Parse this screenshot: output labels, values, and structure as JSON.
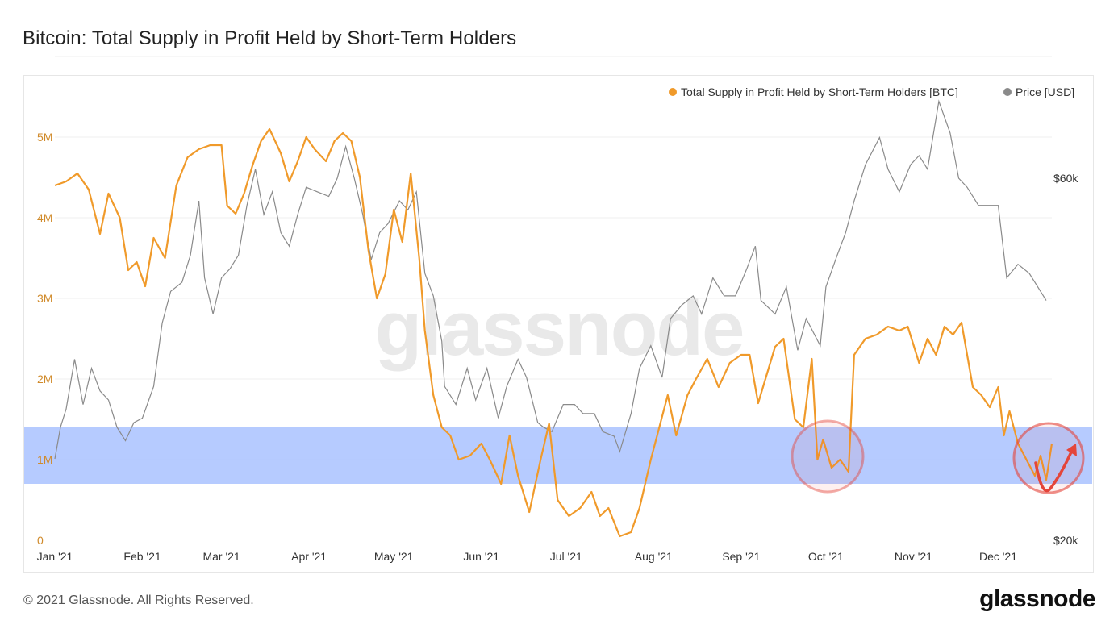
{
  "header": {
    "title": "Bitcoin: Total Supply in Profit Held by Short-Term Holders"
  },
  "footer": {
    "copyright": "© 2021 Glassnode. All Rights Reserved.",
    "logo": "glassnode"
  },
  "watermark": "glassnode",
  "colors": {
    "supply": "#f09a2a",
    "price": "#8a8a8a",
    "band": "#a9c2ff",
    "circle": "#e4453a"
  },
  "chart_data": {
    "type": "line",
    "legend_position": "top-right",
    "grid": true,
    "x_ticks": [
      "Jan '21",
      "Feb '21",
      "Mar '21",
      "Apr '21",
      "May '21",
      "Jun '21",
      "Jul '21",
      "Aug '21",
      "Sep '21",
      "Oct '21",
      "Nov '21",
      "Dec '21"
    ],
    "y_left": {
      "ticks": [
        "0",
        "1M",
        "2M",
        "3M",
        "4M",
        "5M"
      ],
      "range": [
        0,
        5500000
      ]
    },
    "y_right": {
      "ticks": [
        "$20k",
        "$60k"
      ],
      "range": [
        20000,
        69000
      ]
    },
    "highlight_band": [
      700000,
      1400000
    ],
    "series": [
      {
        "name": "Total Supply in Profit Held by Short-Term Holders [BTC]",
        "axis": "left",
        "points": [
          [
            "2021-01-01",
            4400000
          ],
          [
            "2021-01-05",
            4450000
          ],
          [
            "2021-01-09",
            4550000
          ],
          [
            "2021-01-13",
            4350000
          ],
          [
            "2021-01-17",
            3800000
          ],
          [
            "2021-01-20",
            4300000
          ],
          [
            "2021-01-24",
            4000000
          ],
          [
            "2021-01-27",
            3350000
          ],
          [
            "2021-01-30",
            3450000
          ],
          [
            "2021-02-02",
            3150000
          ],
          [
            "2021-02-05",
            3750000
          ],
          [
            "2021-02-09",
            3500000
          ],
          [
            "2021-02-13",
            4400000
          ],
          [
            "2021-02-17",
            4750000
          ],
          [
            "2021-02-21",
            4850000
          ],
          [
            "2021-02-25",
            4900000
          ],
          [
            "2021-03-01",
            4900000
          ],
          [
            "2021-03-03",
            4150000
          ],
          [
            "2021-03-06",
            4050000
          ],
          [
            "2021-03-09",
            4300000
          ],
          [
            "2021-03-12",
            4650000
          ],
          [
            "2021-03-15",
            4950000
          ],
          [
            "2021-03-18",
            5100000
          ],
          [
            "2021-03-22",
            4800000
          ],
          [
            "2021-03-25",
            4450000
          ],
          [
            "2021-03-28",
            4700000
          ],
          [
            "2021-03-31",
            5000000
          ],
          [
            "2021-04-03",
            4850000
          ],
          [
            "2021-04-07",
            4700000
          ],
          [
            "2021-04-10",
            4950000
          ],
          [
            "2021-04-13",
            5050000
          ],
          [
            "2021-04-16",
            4950000
          ],
          [
            "2021-04-19",
            4500000
          ],
          [
            "2021-04-22",
            3600000
          ],
          [
            "2021-04-25",
            3000000
          ],
          [
            "2021-04-28",
            3300000
          ],
          [
            "2021-05-01",
            4100000
          ],
          [
            "2021-05-04",
            3700000
          ],
          [
            "2021-05-07",
            4550000
          ],
          [
            "2021-05-10",
            3500000
          ],
          [
            "2021-05-12",
            2600000
          ],
          [
            "2021-05-15",
            1800000
          ],
          [
            "2021-05-18",
            1400000
          ],
          [
            "2021-05-21",
            1300000
          ],
          [
            "2021-05-24",
            1000000
          ],
          [
            "2021-05-28",
            1050000
          ],
          [
            "2021-06-01",
            1200000
          ],
          [
            "2021-06-04",
            1000000
          ],
          [
            "2021-06-08",
            700000
          ],
          [
            "2021-06-11",
            1300000
          ],
          [
            "2021-06-14",
            800000
          ],
          [
            "2021-06-18",
            350000
          ],
          [
            "2021-06-22",
            1000000
          ],
          [
            "2021-06-25",
            1450000
          ],
          [
            "2021-06-28",
            500000
          ],
          [
            "2021-07-02",
            300000
          ],
          [
            "2021-07-06",
            400000
          ],
          [
            "2021-07-10",
            600000
          ],
          [
            "2021-07-13",
            300000
          ],
          [
            "2021-07-16",
            400000
          ],
          [
            "2021-07-20",
            50000
          ],
          [
            "2021-07-24",
            100000
          ],
          [
            "2021-07-27",
            400000
          ],
          [
            "2021-07-31",
            1000000
          ],
          [
            "2021-08-03",
            1400000
          ],
          [
            "2021-08-06",
            1800000
          ],
          [
            "2021-08-09",
            1300000
          ],
          [
            "2021-08-13",
            1800000
          ],
          [
            "2021-08-16",
            2000000
          ],
          [
            "2021-08-20",
            2250000
          ],
          [
            "2021-08-24",
            1900000
          ],
          [
            "2021-08-28",
            2200000
          ],
          [
            "2021-09-01",
            2300000
          ],
          [
            "2021-09-04",
            2300000
          ],
          [
            "2021-09-07",
            1700000
          ],
          [
            "2021-09-10",
            2050000
          ],
          [
            "2021-09-13",
            2400000
          ],
          [
            "2021-09-16",
            2500000
          ],
          [
            "2021-09-20",
            1500000
          ],
          [
            "2021-09-23",
            1400000
          ],
          [
            "2021-09-26",
            2250000
          ],
          [
            "2021-09-28",
            1000000
          ],
          [
            "2021-09-30",
            1250000
          ],
          [
            "2021-10-03",
            900000
          ],
          [
            "2021-10-06",
            1000000
          ],
          [
            "2021-10-09",
            850000
          ],
          [
            "2021-10-11",
            2300000
          ],
          [
            "2021-10-15",
            2500000
          ],
          [
            "2021-10-19",
            2550000
          ],
          [
            "2021-10-23",
            2650000
          ],
          [
            "2021-10-27",
            2600000
          ],
          [
            "2021-10-30",
            2650000
          ],
          [
            "2021-11-03",
            2200000
          ],
          [
            "2021-11-06",
            2500000
          ],
          [
            "2021-11-09",
            2300000
          ],
          [
            "2021-11-12",
            2650000
          ],
          [
            "2021-11-15",
            2550000
          ],
          [
            "2021-11-18",
            2700000
          ],
          [
            "2021-11-22",
            1900000
          ],
          [
            "2021-11-25",
            1800000
          ],
          [
            "2021-11-28",
            1650000
          ],
          [
            "2021-12-01",
            1900000
          ],
          [
            "2021-12-03",
            1300000
          ],
          [
            "2021-12-05",
            1600000
          ],
          [
            "2021-12-08",
            1200000
          ],
          [
            "2021-12-11",
            1000000
          ],
          [
            "2021-12-14",
            800000
          ],
          [
            "2021-12-16",
            1050000
          ],
          [
            "2021-12-18",
            750000
          ],
          [
            "2021-12-20",
            1200000
          ]
        ]
      },
      {
        "name": "Price [USD]",
        "axis": "right",
        "points": [
          [
            "2021-01-01",
            29000
          ],
          [
            "2021-01-03",
            32500
          ],
          [
            "2021-01-05",
            34500
          ],
          [
            "2021-01-08",
            40000
          ],
          [
            "2021-01-11",
            35000
          ],
          [
            "2021-01-14",
            39000
          ],
          [
            "2021-01-17",
            36500
          ],
          [
            "2021-01-20",
            35500
          ],
          [
            "2021-01-23",
            32500
          ],
          [
            "2021-01-26",
            31000
          ],
          [
            "2021-01-29",
            33000
          ],
          [
            "2021-02-01",
            33500
          ],
          [
            "2021-02-05",
            37000
          ],
          [
            "2021-02-08",
            44000
          ],
          [
            "2021-02-11",
            47500
          ],
          [
            "2021-02-15",
            48500
          ],
          [
            "2021-02-18",
            51500
          ],
          [
            "2021-02-21",
            57500
          ],
          [
            "2021-02-23",
            49000
          ],
          [
            "2021-02-26",
            45000
          ],
          [
            "2021-03-01",
            49000
          ],
          [
            "2021-03-04",
            50000
          ],
          [
            "2021-03-07",
            51500
          ],
          [
            "2021-03-10",
            57000
          ],
          [
            "2021-03-13",
            61000
          ],
          [
            "2021-03-16",
            56000
          ],
          [
            "2021-03-19",
            58500
          ],
          [
            "2021-03-22",
            54000
          ],
          [
            "2021-03-25",
            52500
          ],
          [
            "2021-03-28",
            56000
          ],
          [
            "2021-03-31",
            59000
          ],
          [
            "2021-04-04",
            58500
          ],
          [
            "2021-04-08",
            58000
          ],
          [
            "2021-04-11",
            60000
          ],
          [
            "2021-04-14",
            63500
          ],
          [
            "2021-04-17",
            60000
          ],
          [
            "2021-04-20",
            56000
          ],
          [
            "2021-04-23",
            51000
          ],
          [
            "2021-04-26",
            54000
          ],
          [
            "2021-04-29",
            55000
          ],
          [
            "2021-05-03",
            57500
          ],
          [
            "2021-05-06",
            56500
          ],
          [
            "2021-05-09",
            58500
          ],
          [
            "2021-05-12",
            49500
          ],
          [
            "2021-05-15",
            47000
          ],
          [
            "2021-05-18",
            42000
          ],
          [
            "2021-05-19",
            37000
          ],
          [
            "2021-05-23",
            35000
          ],
          [
            "2021-05-27",
            39000
          ],
          [
            "2021-05-30",
            35500
          ],
          [
            "2021-06-03",
            39000
          ],
          [
            "2021-06-07",
            33500
          ],
          [
            "2021-06-10",
            37000
          ],
          [
            "2021-06-14",
            40000
          ],
          [
            "2021-06-17",
            38000
          ],
          [
            "2021-06-21",
            33000
          ],
          [
            "2021-06-23",
            32500
          ],
          [
            "2021-06-26",
            32000
          ],
          [
            "2021-06-30",
            35000
          ],
          [
            "2021-07-04",
            35000
          ],
          [
            "2021-07-07",
            34000
          ],
          [
            "2021-07-11",
            34000
          ],
          [
            "2021-07-14",
            32000
          ],
          [
            "2021-07-18",
            31500
          ],
          [
            "2021-07-20",
            29800
          ],
          [
            "2021-07-24",
            34000
          ],
          [
            "2021-07-27",
            39000
          ],
          [
            "2021-07-31",
            41500
          ],
          [
            "2021-08-04",
            38000
          ],
          [
            "2021-08-07",
            44500
          ],
          [
            "2021-08-11",
            46000
          ],
          [
            "2021-08-15",
            47000
          ],
          [
            "2021-08-18",
            45000
          ],
          [
            "2021-08-22",
            49000
          ],
          [
            "2021-08-26",
            47000
          ],
          [
            "2021-08-30",
            47000
          ],
          [
            "2021-09-03",
            50000
          ],
          [
            "2021-09-06",
            52500
          ],
          [
            "2021-09-08",
            46500
          ],
          [
            "2021-09-13",
            45000
          ],
          [
            "2021-09-17",
            48000
          ],
          [
            "2021-09-21",
            41000
          ],
          [
            "2021-09-24",
            44500
          ],
          [
            "2021-09-29",
            41500
          ],
          [
            "2021-10-01",
            48000
          ],
          [
            "2021-10-05",
            51500
          ],
          [
            "2021-10-08",
            54000
          ],
          [
            "2021-10-11",
            57500
          ],
          [
            "2021-10-15",
            61500
          ],
          [
            "2021-10-20",
            64500
          ],
          [
            "2021-10-23",
            61000
          ],
          [
            "2021-10-27",
            58500
          ],
          [
            "2021-10-31",
            61500
          ],
          [
            "2021-11-03",
            62500
          ],
          [
            "2021-11-06",
            61000
          ],
          [
            "2021-11-10",
            68500
          ],
          [
            "2021-11-14",
            65000
          ],
          [
            "2021-11-17",
            60000
          ],
          [
            "2021-11-20",
            59000
          ],
          [
            "2021-11-24",
            57000
          ],
          [
            "2021-11-28",
            57000
          ],
          [
            "2021-12-01",
            57000
          ],
          [
            "2021-12-04",
            49000
          ],
          [
            "2021-12-08",
            50500
          ],
          [
            "2021-12-12",
            49500
          ],
          [
            "2021-12-16",
            47500
          ],
          [
            "2021-12-18",
            46500
          ]
        ]
      }
    ]
  }
}
